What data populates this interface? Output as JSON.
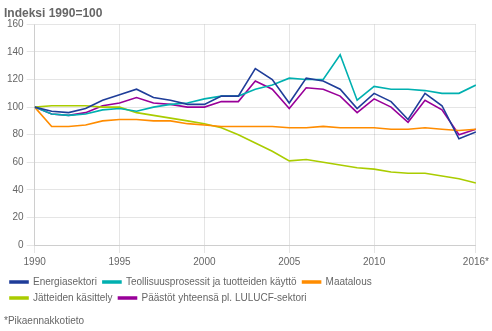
{
  "chart_data": {
    "type": "line",
    "title": "Indeksi 1990=100",
    "footnote": "*Pikaennakkotieto",
    "x": [
      1990,
      1991,
      1992,
      1993,
      1994,
      1995,
      1996,
      1997,
      1998,
      1999,
      2000,
      2001,
      2002,
      2003,
      2004,
      2005,
      2006,
      2007,
      2008,
      2009,
      2010,
      2011,
      2012,
      2013,
      2014,
      2015,
      2016
    ],
    "series": [
      {
        "name": "Energiasektori",
        "color": "#1f3d99",
        "values": [
          100,
          97,
          96,
          99,
          105,
          109,
          113,
          107,
          105,
          102,
          102,
          108,
          108,
          128,
          120,
          103,
          121,
          119,
          113,
          99,
          110,
          104,
          91,
          110,
          101,
          77,
          82
        ]
      },
      {
        "name": "Teollisuusprosessit ja tuotteiden käyttö",
        "color": "#00b0b0",
        "values": [
          100,
          95,
          94,
          95,
          98,
          99,
          97,
          100,
          102,
          103,
          106,
          108,
          108,
          113,
          116,
          121,
          120,
          120,
          138,
          105,
          115,
          113,
          113,
          112,
          110,
          110,
          116
        ]
      },
      {
        "name": "Maatalous",
        "color": "#ff8c00",
        "values": [
          100,
          86,
          86,
          87,
          90,
          91,
          91,
          90,
          90,
          88,
          87,
          86,
          86,
          86,
          86,
          85,
          85,
          86,
          85,
          85,
          85,
          84,
          84,
          85,
          84,
          83,
          84
        ]
      },
      {
        "name": "Jätteiden käsittely",
        "color": "#aacc00",
        "values": [
          100,
          101,
          101,
          101,
          100,
          100,
          96,
          94,
          92,
          90,
          88,
          85,
          80,
          74,
          68,
          61,
          62,
          60,
          58,
          56,
          55,
          53,
          52,
          52,
          50,
          48,
          45
        ]
      },
      {
        "name": "Päästöt yhteensä pl. LULUCF-sektori",
        "color": "#990099",
        "values": [
          100,
          95,
          94,
          96,
          101,
          103,
          107,
          103,
          102,
          100,
          100,
          104,
          104,
          119,
          113,
          99,
          114,
          113,
          108,
          96,
          106,
          100,
          89,
          105,
          98,
          80,
          84
        ]
      }
    ],
    "xlim": [
      1990,
      2016
    ],
    "xticks": [
      1990,
      1995,
      2000,
      2005,
      2010,
      {
        "value": 2016,
        "label": "2016*"
      }
    ],
    "ylim": [
      0,
      160
    ],
    "yticks": [
      0,
      20,
      40,
      60,
      80,
      100,
      120,
      140,
      160
    ],
    "grid": true,
    "legend": "bottom"
  }
}
